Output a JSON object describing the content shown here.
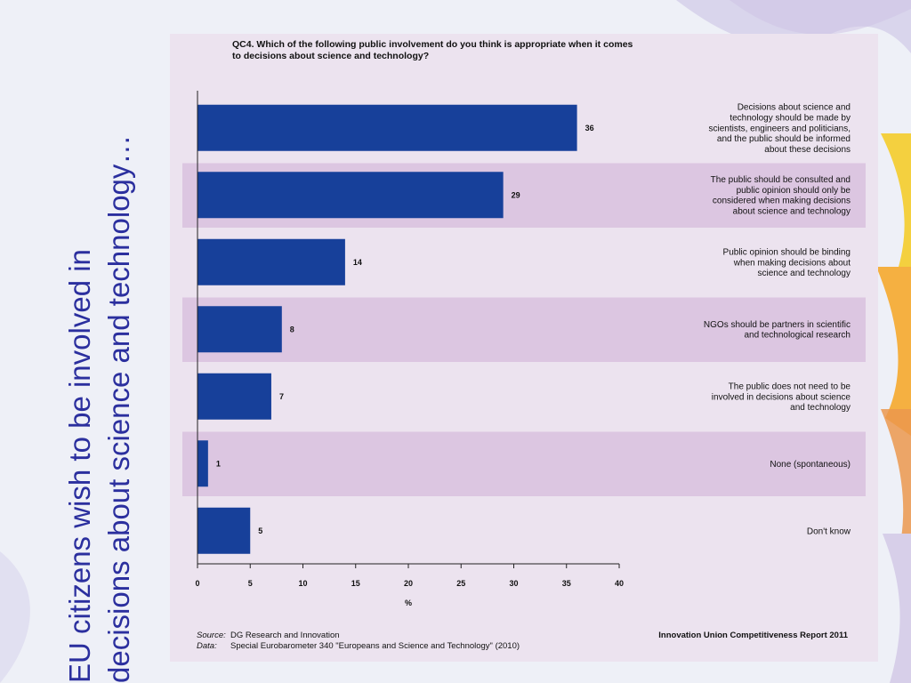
{
  "slide": {
    "title_line1": "EU citizens wish to be involved in",
    "title_line2": "decisions about science and technology…",
    "colors": {
      "title": "#2b2f9e",
      "bar": "#17409a",
      "band": "#dcc6e1",
      "panel": "#ece3ef"
    }
  },
  "chart_data": {
    "type": "bar",
    "orientation": "horizontal",
    "title": "QC4. Which of the following public involvement do you think is appropriate when it comes to decisions about science and technology?",
    "categories": [
      "Decisions about science and technology should be made by scientists, engineers and politicians, and the public should be informed about these decisions",
      "The public should be consulted and public opinion should only be considered when making decisions about science and technology",
      "Public opinion should be binding when making decisions about science and technology",
      "NGOs should be partners in scientific and technological research",
      "The public does not need to be involved in decisions about science and technology",
      "None (spontaneous)",
      "Don't know"
    ],
    "category_lines": [
      [
        "Decisions about science and",
        "technology should be made by",
        "scientists, engineers and politicians,",
        "and the public should be informed",
        "about these decisions"
      ],
      [
        "The public should be consulted and",
        "public opinion should only be",
        "considered when making decisions",
        "about science and technology"
      ],
      [
        "Public opinion should be binding",
        "when making decisions about",
        "science and technology"
      ],
      [
        "NGOs should be partners in scientific",
        "and technological research"
      ],
      [
        "The public does not need to be",
        "involved in decisions about science",
        "and technology"
      ],
      [
        "None (spontaneous)"
      ],
      [
        "Don't know"
      ]
    ],
    "values": [
      36,
      29,
      14,
      8,
      7,
      1,
      5
    ],
    "xlabel": "%",
    "xlim": [
      0,
      40
    ],
    "xticks": [
      0,
      5,
      10,
      15,
      20,
      25,
      30,
      35,
      40
    ],
    "alternating_row_bands": true,
    "source": {
      "source_label": "Source:",
      "source_text": "DG Research and Innovation",
      "data_label": "Data:",
      "data_text": "Special Eurobarometer 340 \"Europeans and Science and Technology\" (2010)",
      "report": "Innovation Union Competitiveness Report 2011"
    }
  }
}
